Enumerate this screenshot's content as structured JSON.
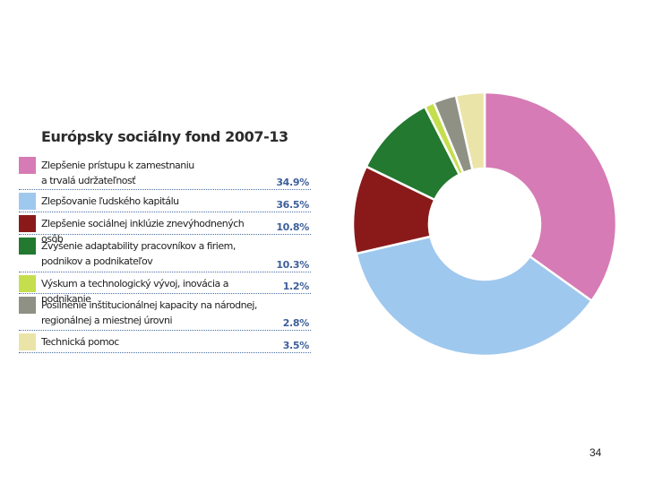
{
  "chart_data": {
    "type": "pie",
    "title": "Európsky sociálny fond 2007-13",
    "slices": [
      {
        "label": "Zlepšenie prístupu k zamestnaniu\na trvalá udržateľnosť",
        "value": 34.9,
        "display": "34.9%",
        "color": "#d67bb5"
      },
      {
        "label": "Zlepšovanie ľudského kapitálu",
        "value": 36.5,
        "display": "36.5%",
        "color": "#9fc8ee"
      },
      {
        "label": "Zlepšenie sociálnej inklúzie znevýhodnených osôb",
        "value": 10.8,
        "display": "10.8%",
        "color": "#8a1a1a"
      },
      {
        "label": "Zvýšenie adaptability pracovníkov a firiem,\npodnikov a podnikateľov",
        "value": 10.3,
        "display": "10.3%",
        "color": "#22792f"
      },
      {
        "label": "Výskum a technologický vývoj, inovácia a podnikanie",
        "value": 1.2,
        "display": "1.2%",
        "color": "#c5de4e"
      },
      {
        "label": "Posilnenie inštitucionálnej kapacity na národnej,\nregionálnej a miestnej úrovni",
        "value": 2.8,
        "display": "2.8%",
        "color": "#8e9184"
      },
      {
        "label": "Technická pomoc",
        "value": 3.5,
        "display": "3.5%",
        "color": "#ebe4a8"
      }
    ]
  },
  "slide": {
    "number": "34"
  }
}
